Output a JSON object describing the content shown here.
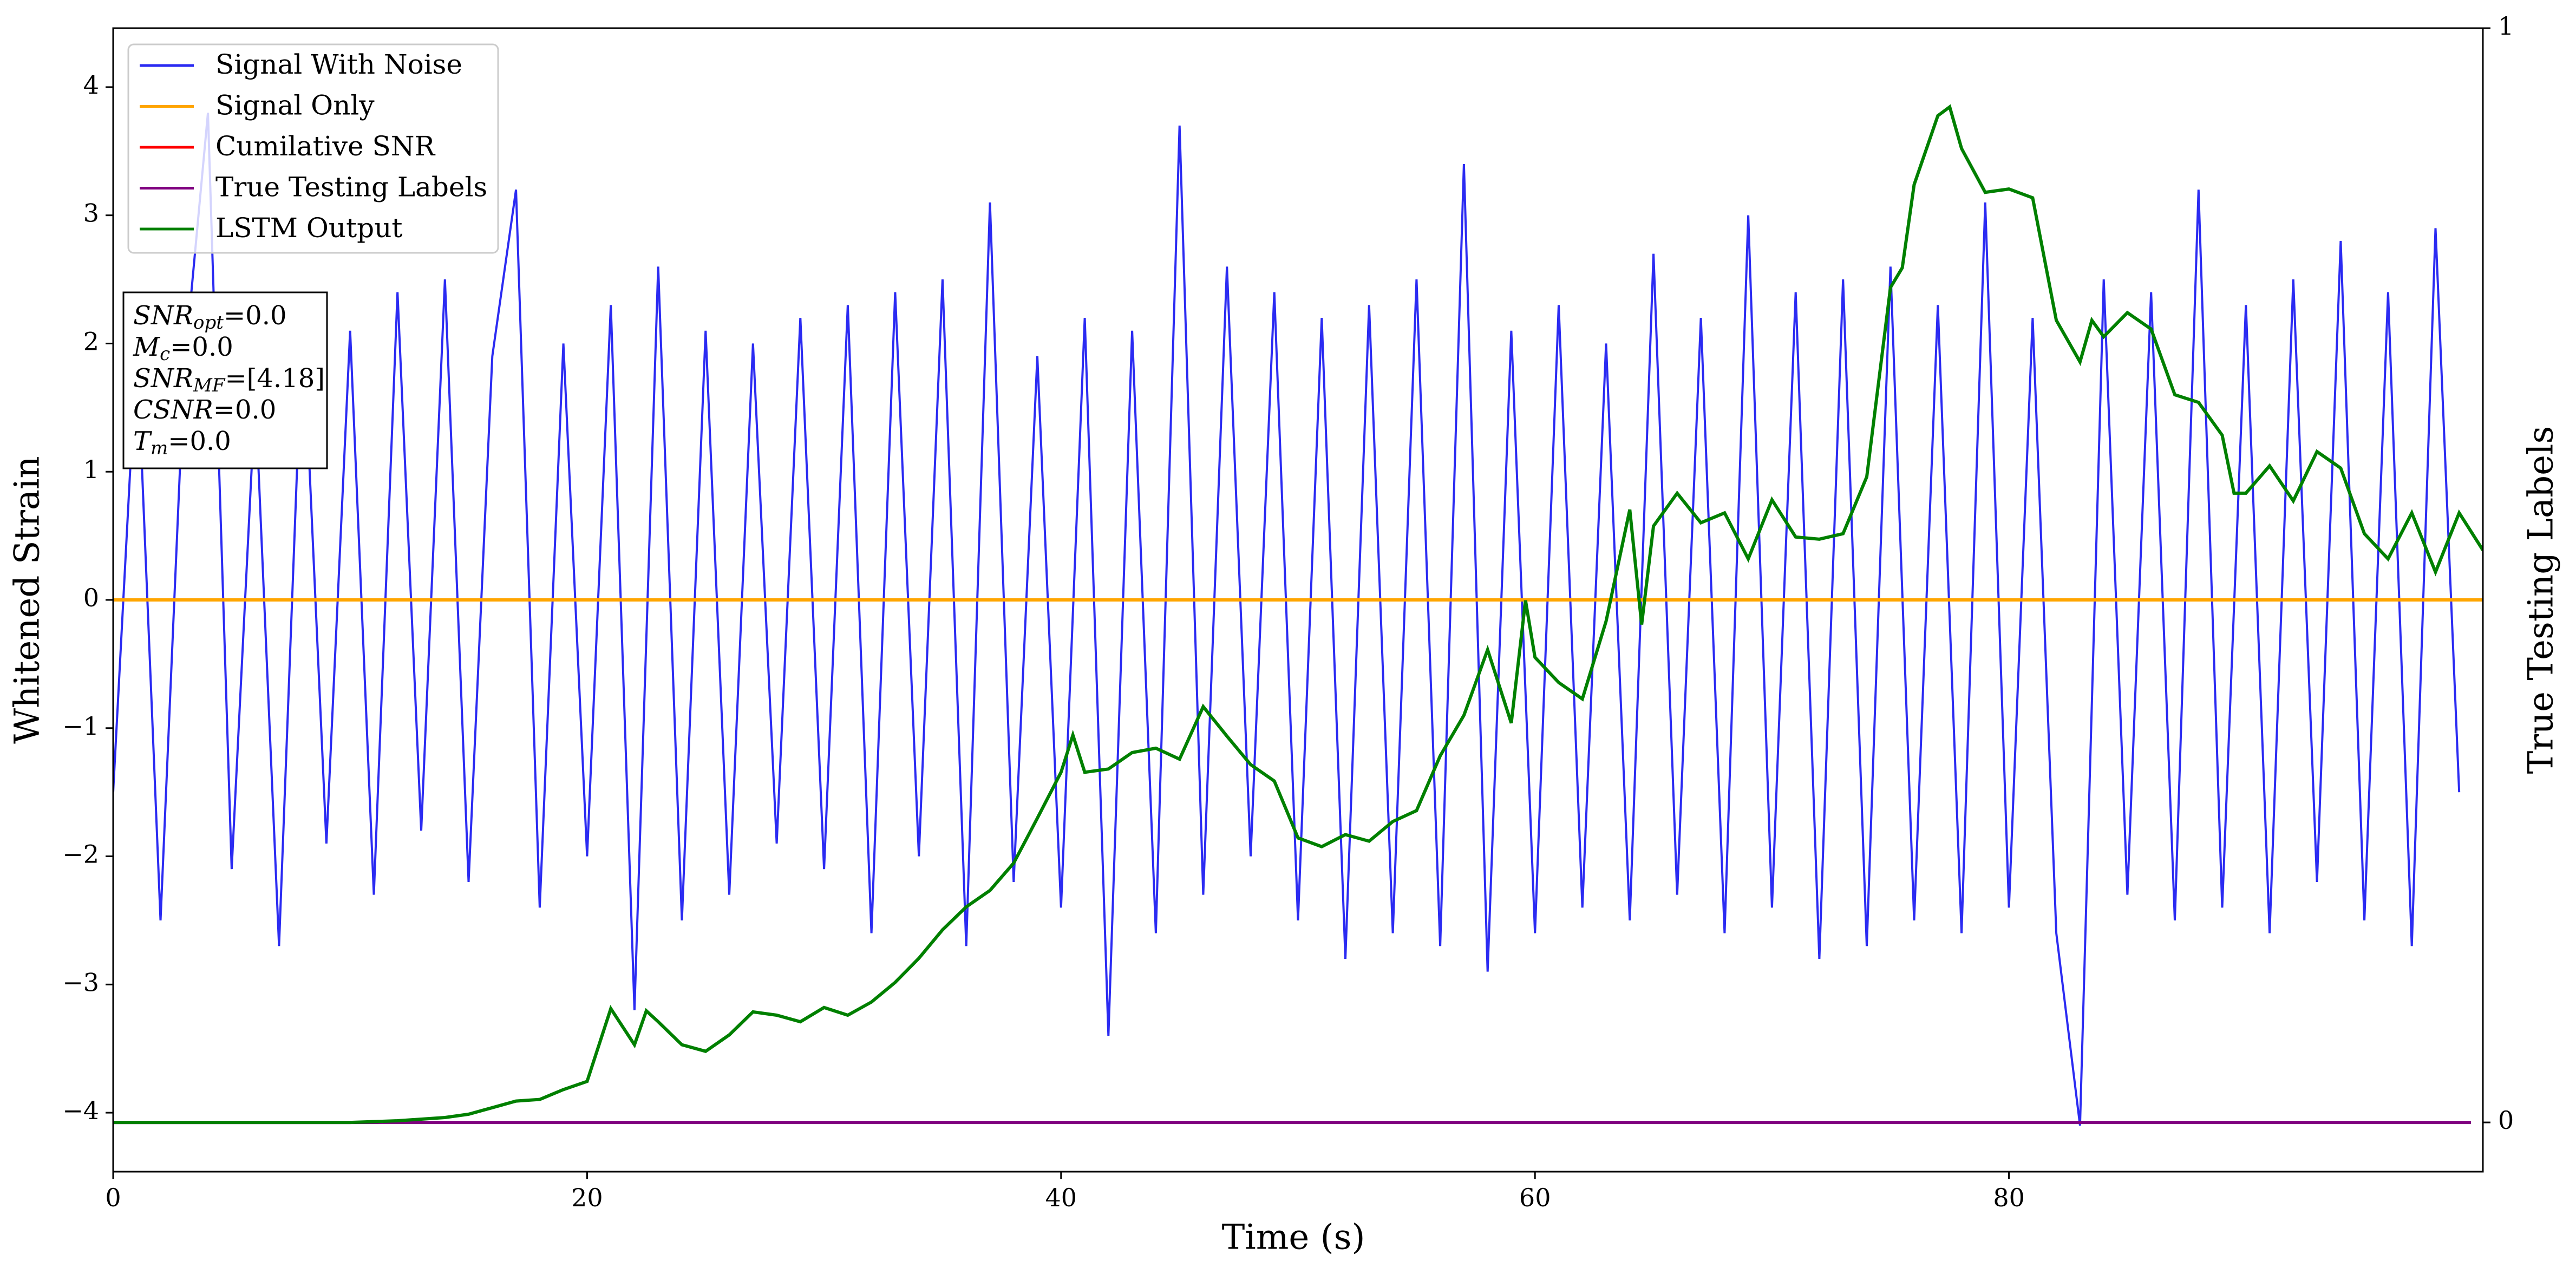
{
  "chart_data": {
    "type": "line",
    "xlabel": "Time (s)",
    "ylabel": "Whitened Strain",
    "y2label": "True Testing Labels",
    "xlim": [
      0,
      100
    ],
    "ylim": [
      -4.46,
      4.46
    ],
    "y2lim": [
      -0.045,
      1
    ],
    "xticks": [
      0,
      20,
      40,
      60,
      80
    ],
    "yticks": [
      {
        "value": -4,
        "label": "−4"
      },
      {
        "value": -3,
        "label": "−3"
      },
      {
        "value": -2,
        "label": "−2"
      },
      {
        "value": -1,
        "label": "−1"
      },
      0,
      1,
      2,
      3,
      4
    ],
    "y2ticks": [
      0,
      1
    ],
    "legend": "upper left",
    "annotation": [
      {
        "main": "SNR",
        "sub": "opt",
        "rest": "=0.0"
      },
      {
        "main": "M",
        "sub": "c",
        "rest": "=0.0"
      },
      {
        "main": "SNR",
        "sub": "MF",
        "rest": "=[4.18]"
      },
      {
        "main": "CSNR",
        "sub": "",
        "rest": "=0.0"
      },
      {
        "main": "T",
        "sub": "m",
        "rest": "=0.0"
      }
    ],
    "series": [
      {
        "name": "Signal With Noise",
        "color": "#2b2bf2",
        "axis": "y",
        "x": [
          0,
          1,
          2,
          3,
          4,
          5,
          6,
          7,
          8,
          9,
          10,
          11,
          12,
          13,
          14,
          15,
          16,
          17,
          18,
          19,
          20,
          21,
          22,
          23,
          24,
          25,
          26,
          27,
          28,
          29,
          30,
          31,
          32,
          33,
          34,
          35,
          36,
          37,
          38,
          39,
          40,
          41,
          42,
          43,
          44,
          45,
          46,
          47,
          48,
          49,
          50,
          51,
          52,
          53,
          54,
          55,
          56,
          57,
          58,
          59,
          60,
          61,
          62,
          63,
          64,
          65,
          66,
          67,
          68,
          69,
          70,
          71,
          72,
          73,
          74,
          75,
          76,
          77,
          78,
          79,
          80,
          81,
          82,
          83,
          84,
          85,
          86,
          87,
          88,
          89,
          90,
          91,
          92,
          93,
          94,
          95,
          96,
          97,
          98,
          99
        ],
        "values": [
          -1.5,
          2.0,
          -2.5,
          1.8,
          3.8,
          -2.1,
          1.6,
          -2.7,
          2.2,
          -1.9,
          2.1,
          -2.3,
          2.4,
          -1.8,
          2.5,
          -2.2,
          1.9,
          3.2,
          -2.4,
          2.0,
          -2.0,
          2.3,
          -3.2,
          2.6,
          -2.5,
          2.1,
          -2.3,
          2.0,
          -1.9,
          2.2,
          -2.1,
          2.3,
          -2.6,
          2.4,
          -2.0,
          2.5,
          -2.7,
          3.1,
          -2.2,
          1.9,
          -2.4,
          2.2,
          -3.4,
          2.1,
          -2.6,
          3.7,
          -2.3,
          2.6,
          -2.0,
          2.4,
          -2.5,
          2.2,
          -2.8,
          2.3,
          -2.6,
          2.5,
          -2.7,
          3.4,
          -2.9,
          2.1,
          -2.6,
          2.3,
          -2.4,
          2.0,
          -2.5,
          2.7,
          -2.3,
          2.2,
          -2.6,
          3.0,
          -2.4,
          2.4,
          -2.8,
          2.5,
          -2.7,
          2.6,
          -2.5,
          2.3,
          -2.6,
          3.1,
          -2.4,
          2.2,
          -2.6,
          -4.1,
          2.5,
          -2.3,
          2.4,
          -2.5,
          3.2,
          -2.4,
          2.3,
          -2.6,
          2.5,
          -2.2,
          2.8,
          -2.5,
          2.4,
          -2.7,
          2.9,
          -1.5
        ]
      },
      {
        "name": "Signal Only",
        "color": "#ffa500",
        "axis": "y",
        "x": [
          0,
          100
        ],
        "values": [
          0,
          0
        ]
      },
      {
        "name": "Cumilative SNR",
        "color": "#ff0000",
        "axis": "y",
        "x": [
          0,
          100
        ],
        "values": [
          0,
          0
        ]
      },
      {
        "name": "True Testing Labels",
        "color": "#800080",
        "axis": "y2",
        "x": [
          0,
          99.5
        ],
        "values": [
          0,
          0
        ]
      },
      {
        "name": "LSTM Output",
        "color": "#008000",
        "axis": "y2",
        "x": [
          0,
          10,
          12,
          14,
          15,
          16,
          17,
          18,
          19,
          20,
          21,
          22,
          22.5,
          23,
          24,
          25,
          26,
          27,
          28,
          29,
          30,
          31,
          32,
          33,
          34,
          35,
          36,
          37,
          38,
          39,
          40,
          40.5,
          41,
          42,
          43,
          44,
          45,
          46,
          47,
          48,
          49,
          50,
          51,
          52,
          53,
          54,
          55,
          56,
          57,
          58,
          59,
          59.6,
          60,
          61,
          62,
          63,
          64,
          64.5,
          65,
          66,
          67,
          68,
          69,
          70,
          71,
          72,
          73,
          74,
          75,
          75.5,
          76,
          77,
          77.5,
          78,
          79,
          80,
          81,
          82,
          83,
          83.5,
          84,
          85,
          86,
          87,
          88,
          89,
          89.5,
          90,
          91,
          92,
          93,
          94,
          95,
          96,
          97,
          98,
          99,
          100
        ],
        "values": [
          0,
          0,
          0.0015,
          0.0045,
          0.0075,
          0.0135,
          0.0195,
          0.021,
          0.03,
          0.0375,
          0.104,
          0.071,
          0.102,
          0.092,
          0.071,
          0.065,
          0.08,
          0.101,
          0.098,
          0.092,
          0.105,
          0.098,
          0.11,
          0.128,
          0.15,
          0.176,
          0.197,
          0.212,
          0.237,
          0.278,
          0.32,
          0.354,
          0.32,
          0.323,
          0.338,
          0.342,
          0.332,
          0.38,
          0.353,
          0.327,
          0.312,
          0.26,
          0.252,
          0.263,
          0.257,
          0.275,
          0.285,
          0.335,
          0.372,
          0.432,
          0.365,
          0.477,
          0.425,
          0.402,
          0.387,
          0.458,
          0.56,
          0.455,
          0.545,
          0.575,
          0.548,
          0.557,
          0.515,
          0.569,
          0.535,
          0.533,
          0.538,
          0.59,
          0.763,
          0.781,
          0.857,
          0.92,
          0.928,
          0.89,
          0.85,
          0.853,
          0.845,
          0.733,
          0.695,
          0.733,
          0.718,
          0.74,
          0.725,
          0.665,
          0.658,
          0.628,
          0.575,
          0.575,
          0.6,
          0.568,
          0.613,
          0.598,
          0.538,
          0.515,
          0.557,
          0.503,
          0.557,
          0.523
        ]
      }
    ]
  }
}
